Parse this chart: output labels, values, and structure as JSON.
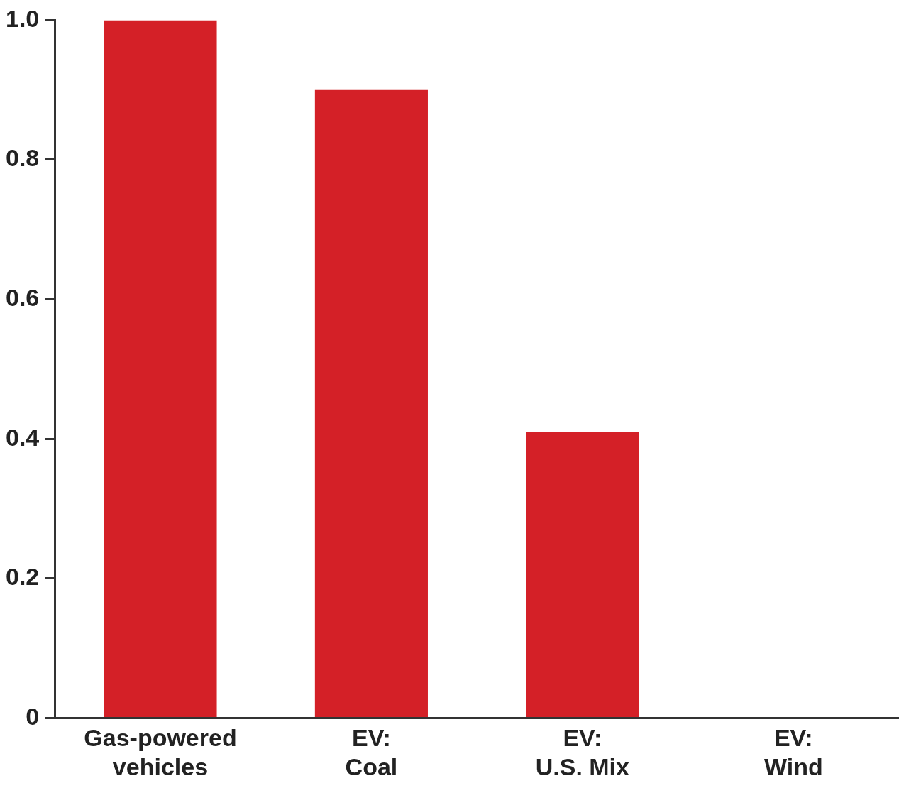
{
  "chart_data": {
    "type": "bar",
    "categories": [
      "Gas-powered\nvehicles",
      "EV:\nCoal",
      "EV:\nU.S. Mix",
      "EV:\nWind"
    ],
    "values": [
      1.0,
      0.9,
      0.41,
      0
    ],
    "color": "#d42027",
    "ylim": [
      0,
      1
    ],
    "yticks": [
      0,
      0.2,
      0.4,
      0.6,
      0.8,
      {
        "value": 1,
        "label": "1.0"
      }
    ],
    "grid": false,
    "legend": false
  }
}
